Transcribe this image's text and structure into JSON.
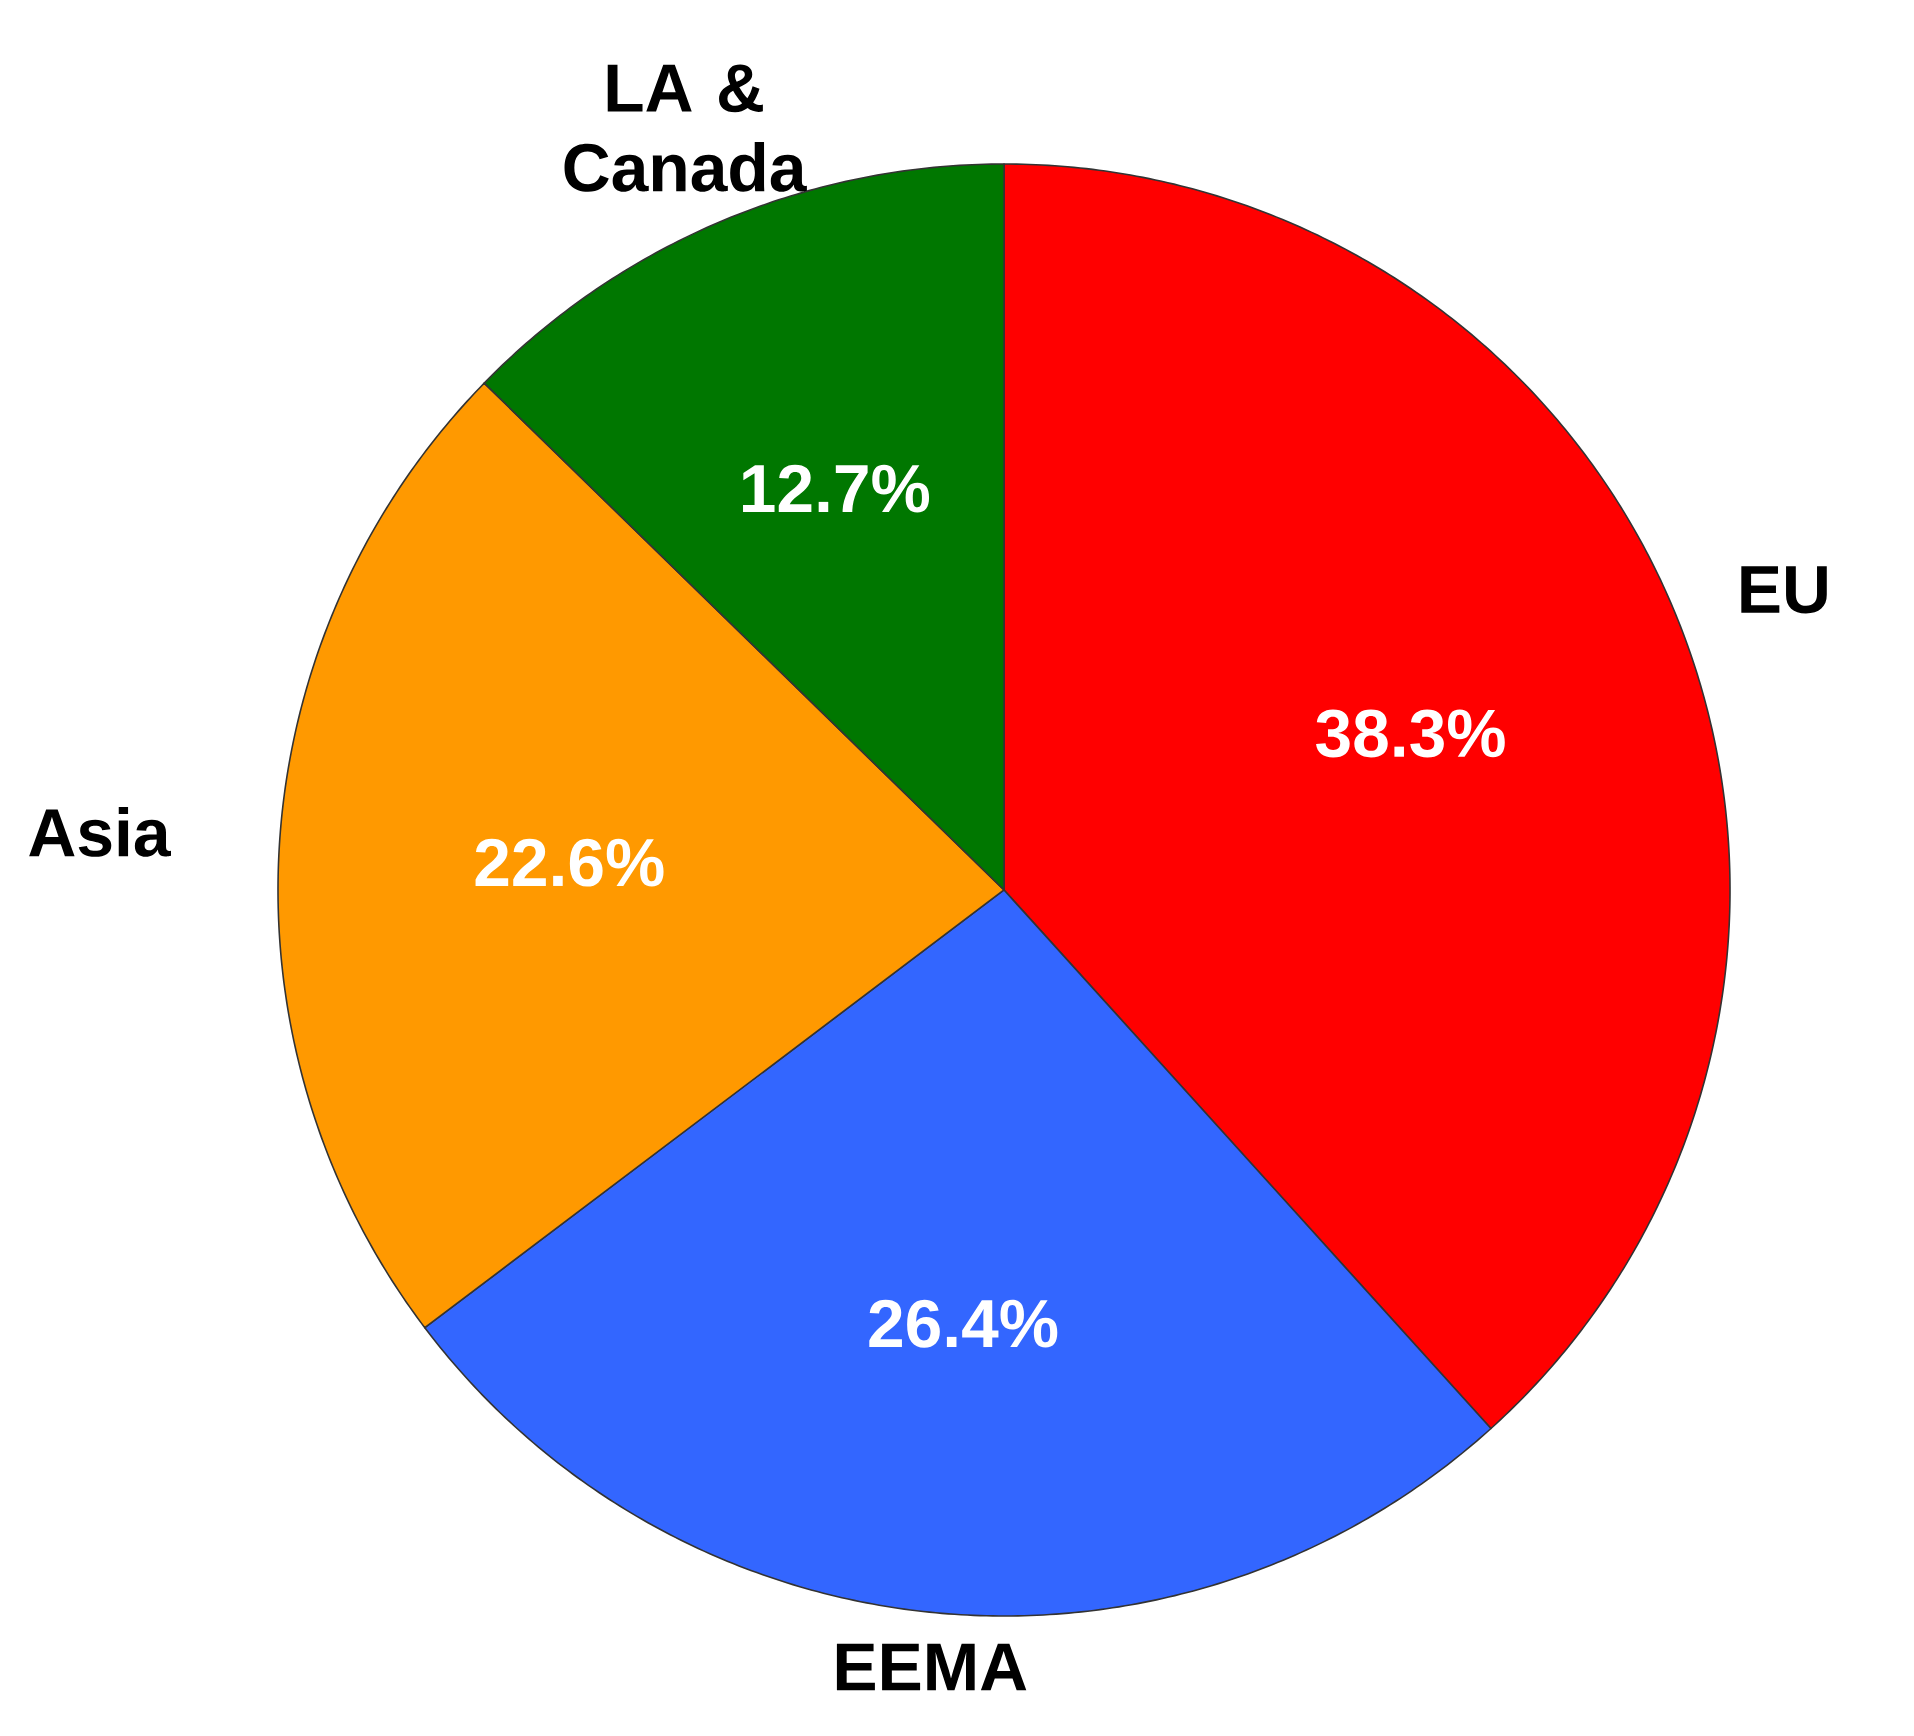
{
  "chart_data": {
    "type": "pie",
    "categories": [
      "EU",
      "EEMA",
      "Asia",
      "LA & Canada"
    ],
    "values": [
      38.3,
      26.4,
      22.6,
      12.7
    ],
    "colors": [
      "#ff0000",
      "#3366ff",
      "#ff9900",
      "#007700"
    ],
    "value_labels": [
      "38.3%",
      "26.4%",
      "22.6%",
      "12.7%"
    ]
  }
}
